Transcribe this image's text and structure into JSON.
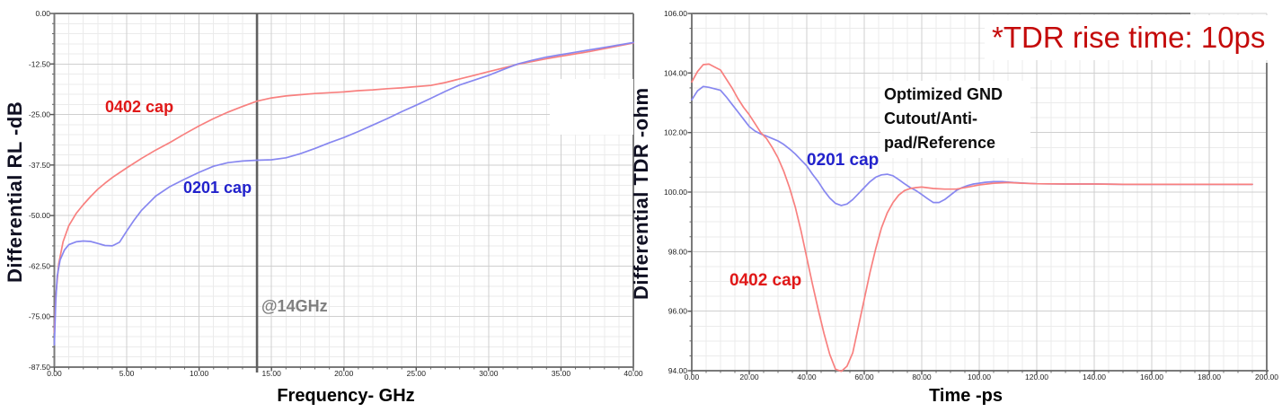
{
  "page": {
    "background": "#ffffff"
  },
  "chart_data": [
    {
      "type": "line",
      "title": "",
      "xlabel": "Frequency- GHz",
      "ylabel": "Differential RL -dB",
      "xlim": [
        0,
        40
      ],
      "ylim": [
        -87.5,
        0
      ],
      "x_ticks": [
        0,
        5,
        10,
        15,
        20,
        25,
        30,
        35,
        40
      ],
      "x_tick_labels": [
        "0.00",
        "5.00",
        "10.00",
        "15.00",
        "20.00",
        "25.00",
        "30.00",
        "35.00",
        "40.00"
      ],
      "y_ticks": [
        0,
        -12.5,
        -25,
        -37.5,
        -50,
        -62.5,
        -75,
        -87.5
      ],
      "y_tick_labels": [
        "0.00",
        "-12.50",
        "-25.00",
        "-37.50",
        "-50.00",
        "-62.50",
        "-75.00",
        "-87.50"
      ],
      "x_minor_step": 1,
      "y_minor_step": 2.5,
      "grid": true,
      "legend_position": "inline-labels",
      "marker": {
        "x": 14,
        "label": "@14GHz",
        "color": "#606060"
      },
      "series": [
        {
          "name": "0402 cap",
          "color": "#F8807F",
          "label_color": "#E01818",
          "x": [
            0,
            0.1,
            0.3,
            0.6,
            1,
            1.5,
            2,
            2.5,
            3,
            3.5,
            4,
            5,
            6,
            7,
            8,
            9,
            10,
            11,
            12,
            13,
            14,
            15,
            16,
            17,
            18,
            19,
            20,
            21,
            22,
            23,
            24,
            25,
            26,
            27,
            28,
            29,
            30,
            31,
            32,
            33,
            34,
            35,
            36,
            37,
            38,
            39,
            40
          ],
          "y": [
            -79,
            -70,
            -62,
            -56.5,
            -52.5,
            -49.5,
            -47.3,
            -45.3,
            -43.5,
            -42,
            -40.6,
            -38.2,
            -35.9,
            -33.8,
            -31.9,
            -29.8,
            -27.8,
            -26,
            -24.4,
            -23,
            -21.7,
            -20.9,
            -20.4,
            -20.1,
            -19.8,
            -19.6,
            -19.4,
            -19.1,
            -18.9,
            -18.6,
            -18.4,
            -18.1,
            -17.8,
            -17.1,
            -16.2,
            -15.3,
            -14.4,
            -13.5,
            -12.6,
            -11.9,
            -11.2,
            -10.6,
            -10,
            -9.4,
            -8.7,
            -8,
            -7.3
          ]
        },
        {
          "name": "0201 cap",
          "color": "#8787F0",
          "label_color": "#2222CC",
          "x": [
            0,
            0.1,
            0.2,
            0.4,
            0.7,
            1,
            1.5,
            2,
            2.5,
            3,
            3.5,
            4,
            4.5,
            5,
            5.5,
            6,
            7,
            8,
            9,
            10,
            11,
            12,
            13,
            14,
            15,
            16,
            17,
            18,
            19,
            20,
            21,
            22,
            23,
            24,
            25,
            26,
            27,
            28,
            29,
            30,
            31,
            32,
            33,
            34,
            35,
            36,
            37,
            38,
            39,
            40
          ],
          "y": [
            -82,
            -71,
            -65,
            -61,
            -58.5,
            -57.2,
            -56.5,
            -56.3,
            -56.4,
            -56.9,
            -57.4,
            -57.5,
            -56.6,
            -53.8,
            -51.2,
            -48.8,
            -45.2,
            -42.8,
            -41,
            -39.3,
            -37.8,
            -36.9,
            -36.5,
            -36.3,
            -36.2,
            -35.7,
            -34.7,
            -33.4,
            -32,
            -30.7,
            -29.2,
            -27.6,
            -26,
            -24.3,
            -22.7,
            -21,
            -19.3,
            -17.7,
            -16.5,
            -15.3,
            -13.9,
            -12.5,
            -11.6,
            -10.8,
            -10.2,
            -9.6,
            -9,
            -8.4,
            -7.8,
            -7.2
          ]
        }
      ]
    },
    {
      "type": "line",
      "title": "",
      "xlabel": "Time -ps",
      "ylabel": "Differential TDR -ohm",
      "xlim": [
        0,
        200
      ],
      "ylim": [
        94,
        106
      ],
      "x_ticks": [
        0,
        20,
        40,
        60,
        80,
        100,
        120,
        140,
        160,
        180,
        200
      ],
      "x_tick_labels": [
        "0.00",
        "20.00",
        "40.00",
        "60.00",
        "80.00",
        "100.00",
        "120.00",
        "140.00",
        "160.00",
        "180.00",
        "200.00"
      ],
      "y_ticks": [
        106,
        104,
        102,
        100,
        98,
        96,
        94
      ],
      "y_tick_labels": [
        "106.00",
        "104.00",
        "102.00",
        "100.00",
        "98.00",
        "96.00",
        "94.00"
      ],
      "x_minor_step": 5,
      "y_minor_step": 0.5,
      "grid": true,
      "legend_position": "inline-labels",
      "annotations": {
        "tdr_note": "*TDR rise time: 10ps",
        "gnd_note": "Optimized GND\nCutout/Anti-\npad/Reference"
      },
      "series": [
        {
          "name": "0201 cap",
          "color": "#8787F0",
          "label_color": "#2222CC",
          "x": [
            0,
            2,
            4,
            6,
            8,
            10,
            12,
            14,
            16,
            18,
            20,
            22,
            24,
            26,
            28,
            30,
            32,
            34,
            36,
            38,
            40,
            42,
            44,
            46,
            48,
            50,
            52,
            54,
            56,
            58,
            60,
            62,
            64,
            66,
            68,
            70,
            72,
            74,
            76,
            78,
            80,
            82,
            84,
            86,
            88,
            90,
            92,
            94,
            96,
            98,
            100,
            102,
            105,
            108,
            112,
            116,
            120,
            130,
            140,
            150,
            160,
            170,
            180,
            190,
            195
          ],
          "y": [
            103.1,
            103.4,
            103.55,
            103.52,
            103.47,
            103.42,
            103.2,
            102.95,
            102.7,
            102.45,
            102.2,
            102.05,
            101.95,
            101.88,
            101.8,
            101.72,
            101.6,
            101.45,
            101.28,
            101.08,
            100.88,
            100.6,
            100.35,
            100.05,
            99.8,
            99.62,
            99.55,
            99.6,
            99.75,
            99.95,
            100.15,
            100.35,
            100.5,
            100.58,
            100.6,
            100.55,
            100.42,
            100.28,
            100.15,
            100.05,
            99.92,
            99.78,
            99.65,
            99.65,
            99.75,
            99.9,
            100.05,
            100.15,
            100.22,
            100.27,
            100.3,
            100.33,
            100.35,
            100.35,
            100.32,
            100.3,
            100.28,
            100.27,
            100.27,
            100.26,
            100.26,
            100.26,
            100.26,
            100.26,
            100.26
          ]
        },
        {
          "name": "0402 cap",
          "color": "#F8807F",
          "label_color": "#E01818",
          "x": [
            0,
            2,
            4,
            6,
            8,
            10,
            12,
            14,
            16,
            18,
            20,
            22,
            24,
            26,
            28,
            30,
            32,
            34,
            36,
            38,
            40,
            42,
            44,
            46,
            48,
            50,
            52,
            54,
            56,
            58,
            60,
            62,
            64,
            66,
            68,
            70,
            72,
            74,
            76,
            78,
            80,
            84,
            88,
            92,
            96,
            100,
            105,
            110,
            115,
            120,
            130,
            140,
            150,
            160,
            170,
            180,
            190,
            195
          ],
          "y": [
            103.7,
            104.05,
            104.28,
            104.3,
            104.2,
            104.1,
            103.8,
            103.5,
            103.15,
            102.85,
            102.6,
            102.3,
            102.0,
            101.8,
            101.5,
            101.15,
            100.7,
            100.15,
            99.5,
            98.7,
            97.8,
            96.9,
            96.05,
            95.25,
            94.55,
            94.05,
            93.98,
            94.15,
            94.6,
            95.5,
            96.4,
            97.3,
            98.1,
            98.8,
            99.3,
            99.65,
            99.9,
            100.05,
            100.12,
            100.15,
            100.17,
            100.12,
            100.1,
            100.1,
            100.17,
            100.24,
            100.3,
            100.32,
            100.3,
            100.28,
            100.27,
            100.27,
            100.26,
            100.26,
            100.26,
            100.26,
            100.26,
            100.26
          ]
        }
      ]
    }
  ],
  "colors": {
    "curve_red": "#F8807F",
    "curve_blue": "#8787F0",
    "label_red": "#E01818",
    "label_blue": "#2222CC",
    "tdr_note_red": "#C40A0A",
    "marker_gray": "#606060",
    "axis_gray": "#7a7a7a",
    "grid_major": "#cfcfcf",
    "grid_minor": "#ebebeb"
  }
}
